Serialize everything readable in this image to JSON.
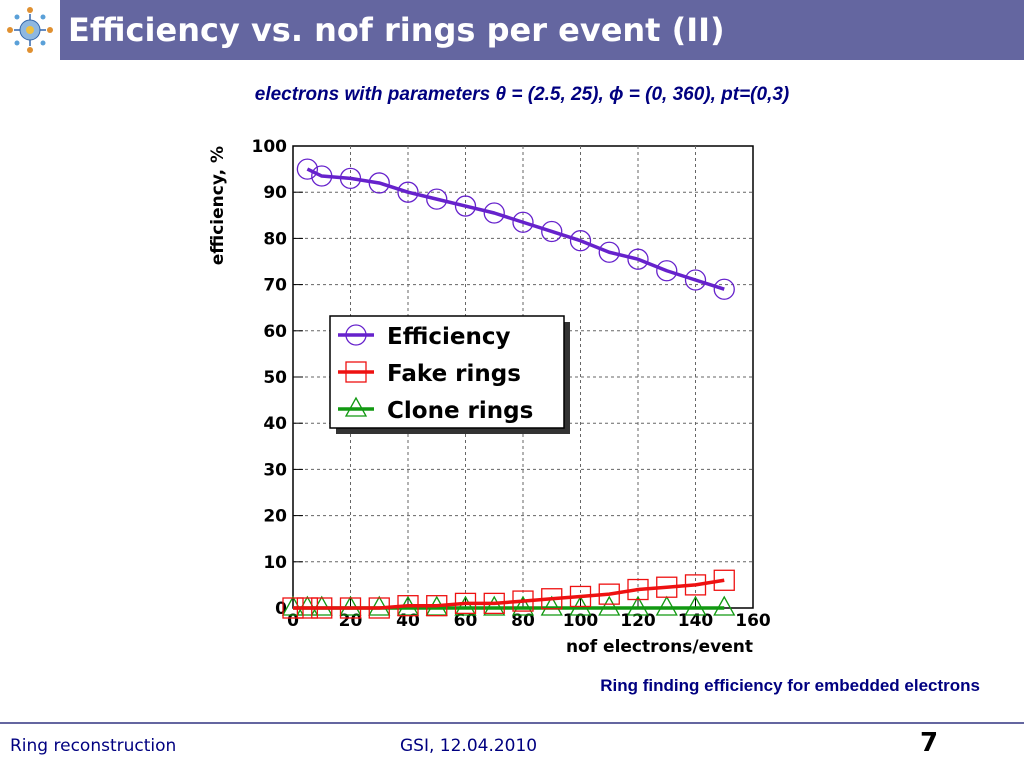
{
  "slide": {
    "title": "Efficiency vs. nof rings per event (II)",
    "subtitle": "electrons with parameters θ = (2.5, 25), ϕ = (0, 360), pt=(0,3)",
    "caption": "Ring finding efficiency for embedded electrons",
    "footer_left": "Ring reconstruction",
    "footer_center": "GSI, 12.04.2010",
    "page_number": "7",
    "colors": {
      "title_bar": "#6466a0",
      "text_blue": "#000080"
    }
  },
  "chart_data": {
    "type": "line",
    "xlabel": "nof electrons/event",
    "ylabel": "efficiency, %",
    "xlim": [
      0,
      160
    ],
    "ylim": [
      0,
      100
    ],
    "xticks": [
      0,
      20,
      40,
      60,
      80,
      100,
      120,
      140,
      160
    ],
    "yticks": [
      0,
      10,
      20,
      30,
      40,
      50,
      60,
      70,
      80,
      90,
      100
    ],
    "grid": true,
    "legend_position": "center-left",
    "series": [
      {
        "name": "Efficiency",
        "color": "#6622cc",
        "marker": "circle",
        "x": [
          5,
          10,
          20,
          30,
          40,
          50,
          60,
          70,
          80,
          90,
          100,
          110,
          120,
          130,
          140,
          150
        ],
        "y": [
          95,
          93.5,
          93,
          92,
          90,
          88.5,
          87,
          85.5,
          83.5,
          81.5,
          79.5,
          77,
          75.5,
          73,
          71,
          69
        ]
      },
      {
        "name": "Fake rings",
        "color": "#ee1111",
        "marker": "square",
        "x": [
          0,
          5,
          10,
          20,
          30,
          40,
          50,
          60,
          70,
          80,
          90,
          100,
          110,
          120,
          130,
          140,
          150
        ],
        "y": [
          0,
          0,
          0,
          0,
          0,
          0.5,
          0.5,
          1,
          1,
          1.5,
          2,
          2.5,
          3,
          4,
          4.5,
          5,
          6
        ]
      },
      {
        "name": "Clone rings",
        "color": "#119911",
        "marker": "triangle",
        "x": [
          0,
          5,
          10,
          20,
          30,
          40,
          50,
          60,
          70,
          80,
          90,
          100,
          110,
          120,
          130,
          140,
          150
        ],
        "y": [
          0,
          0,
          0,
          0,
          0,
          0,
          0,
          0,
          0,
          0,
          0,
          0,
          0,
          0,
          0,
          0,
          0
        ]
      }
    ]
  }
}
